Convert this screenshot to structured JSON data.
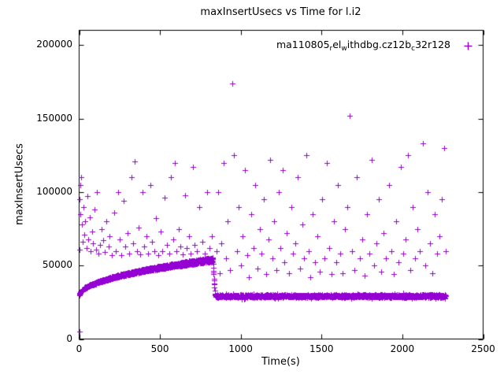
{
  "title": "maxInsertUsecs vs Time for l.i2",
  "legend": {
    "plain": "ma110805_rel_withdbg.cz12b_c32r128",
    "parts": [
      {
        "text": "ma110805"
      },
      {
        "text": "r",
        "sub": true
      },
      {
        "text": "el"
      },
      {
        "text": "w",
        "sub": true
      },
      {
        "text": "ithdbg.cz12b"
      },
      {
        "text": "c",
        "sub": true
      },
      {
        "text": "32r128"
      }
    ]
  },
  "axes": {
    "x": {
      "label": "Time(s)",
      "min": 0,
      "max": 2500,
      "ticks": [
        {
          "v": 0,
          "label": "0"
        },
        {
          "v": 500,
          "label": "500"
        },
        {
          "v": 1000,
          "label": "1000"
        },
        {
          "v": 1500,
          "label": "1500"
        },
        {
          "v": 2000,
          "label": "2000"
        },
        {
          "v": 2500,
          "label": "2500"
        }
      ]
    },
    "y": {
      "label": "maxInsertUsecs",
      "min": 0,
      "max": 210000,
      "ticks": [
        {
          "v": 0,
          "label": "0"
        },
        {
          "v": 50000,
          "label": "50000"
        },
        {
          "v": 100000,
          "label": "100000"
        },
        {
          "v": 150000,
          "label": "150000"
        },
        {
          "v": 200000,
          "label": "200000"
        }
      ]
    }
  },
  "style": {
    "marker_color": "#9400d3",
    "axis_color": "#000000",
    "background": "#ffffff",
    "marker": "plus"
  },
  "chart_data": {
    "type": "scatter",
    "title": "maxInsertUsecs vs Time for l.i2",
    "xlabel": "Time(s)",
    "ylabel": "maxInsertUsecs",
    "xlim": [
      0,
      2500
    ],
    "ylim": [
      0,
      210000
    ],
    "grid": false,
    "legend_position": "top-right-inside",
    "seed": 42,
    "series": [
      {
        "name": "ma110805_rel_withdbg.cz12b_c32r128",
        "color": "#9400d3",
        "marker": "plus",
        "band": {
          "rise": {
            "x_start": 0,
            "x_end": 826,
            "y_start": 29500,
            "y_end": 54000,
            "exponent": 0.5,
            "step": 1.15,
            "noise_start": 600,
            "noise_end": 1500
          },
          "drop": {
            "x_start": 827,
            "x_end": 841,
            "y_from": 54000,
            "y_to": 29500,
            "points": 15
          },
          "plateau": {
            "x_start": 842,
            "x_end": 2268,
            "y": 29200,
            "step": 1.05,
            "noise": 900,
            "spike_chance": 0.06,
            "spike_extra": 1500
          }
        },
        "low_points": [
          [
            2,
            5000
          ]
        ],
        "outliers": [
          [
            2,
            61000
          ],
          [
            4,
            95000
          ],
          [
            6,
            85000
          ],
          [
            9,
            105000
          ],
          [
            12,
            110000
          ],
          [
            15,
            78000
          ],
          [
            20,
            66000
          ],
          [
            26,
            90000
          ],
          [
            32,
            71000
          ],
          [
            38,
            80000
          ],
          [
            45,
            62000
          ],
          [
            52,
            97000
          ],
          [
            58,
            68000
          ],
          [
            64,
            83000
          ],
          [
            70,
            60000
          ],
          [
            78,
            73000
          ],
          [
            86,
            65000
          ],
          [
            95,
            88000
          ],
          [
            105,
            61000
          ],
          [
            112,
            100000
          ],
          [
            120,
            58000
          ],
          [
            130,
            64000
          ],
          [
            141,
            75000
          ],
          [
            150,
            67000
          ],
          [
            160,
            59000
          ],
          [
            170,
            80000
          ],
          [
            181,
            63000
          ],
          [
            190,
            70000
          ],
          [
            200,
            57000
          ],
          [
            215,
            86000
          ],
          [
            226,
            60000
          ],
          [
            240,
            100000
          ],
          [
            251,
            68000
          ],
          [
            262,
            57000
          ],
          [
            275,
            94000
          ],
          [
            286,
            63000
          ],
          [
            300,
            72000
          ],
          [
            311,
            58000
          ],
          [
            322,
            110000
          ],
          [
            332,
            65000
          ],
          [
            345,
            121000
          ],
          [
            356,
            60000
          ],
          [
            366,
            76000
          ],
          [
            380,
            57500
          ],
          [
            391,
            100000
          ],
          [
            402,
            63000
          ],
          [
            415,
            70000
          ],
          [
            426,
            58000
          ],
          [
            440,
            105000
          ],
          [
            451,
            66000
          ],
          [
            465,
            60000
          ],
          [
            476,
            82000
          ],
          [
            490,
            57000
          ],
          [
            505,
            73000
          ],
          [
            516,
            60000
          ],
          [
            530,
            96000
          ],
          [
            541,
            64000
          ],
          [
            556,
            58000
          ],
          [
            566,
            110000
          ],
          [
            580,
            68000
          ],
          [
            591,
            120000
          ],
          [
            601,
            60000
          ],
          [
            615,
            75000
          ],
          [
            626,
            63000
          ],
          [
            641,
            57500
          ],
          [
            655,
            98000
          ],
          [
            666,
            62000
          ],
          [
            680,
            70000
          ],
          [
            691,
            58000
          ],
          [
            705,
            117000
          ],
          [
            716,
            64000
          ],
          [
            730,
            60000
          ],
          [
            745,
            90000
          ],
          [
            761,
            66000
          ],
          [
            776,
            58000
          ],
          [
            790,
            100000
          ],
          [
            806,
            62000
          ],
          [
            820,
            70000
          ],
          [
            850,
            60000
          ],
          [
            861,
            100000
          ],
          [
            871,
            45000
          ],
          [
            882,
            65000
          ],
          [
            895,
            120000
          ],
          [
            910,
            55000
          ],
          [
            921,
            80000
          ],
          [
            935,
            47000
          ],
          [
            950,
            174000
          ],
          [
            960,
            125000
          ],
          [
            975,
            60000
          ],
          [
            986,
            90000
          ],
          [
            1000,
            50000
          ],
          [
            1011,
            70000
          ],
          [
            1025,
            115000
          ],
          [
            1040,
            57000
          ],
          [
            1051,
            42000
          ],
          [
            1065,
            85000
          ],
          [
            1080,
            62000
          ],
          [
            1091,
            105000
          ],
          [
            1105,
            48000
          ],
          [
            1116,
            75000
          ],
          [
            1130,
            58000
          ],
          [
            1141,
            95000
          ],
          [
            1155,
            44000
          ],
          [
            1170,
            68000
          ],
          [
            1181,
            122000
          ],
          [
            1195,
            55000
          ],
          [
            1206,
            80000
          ],
          [
            1220,
            47000
          ],
          [
            1235,
            100000
          ],
          [
            1246,
            62000
          ],
          [
            1260,
            115000
          ],
          [
            1271,
            52000
          ],
          [
            1285,
            72000
          ],
          [
            1300,
            45000
          ],
          [
            1311,
            90000
          ],
          [
            1325,
            58000
          ],
          [
            1340,
            65000
          ],
          [
            1351,
            110000
          ],
          [
            1365,
            48000
          ],
          [
            1380,
            78000
          ],
          [
            1391,
            55000
          ],
          [
            1405,
            125000
          ],
          [
            1420,
            60000
          ],
          [
            1431,
            42000
          ],
          [
            1445,
            85000
          ],
          [
            1460,
            52000
          ],
          [
            1476,
            70000
          ],
          [
            1490,
            46000
          ],
          [
            1505,
            95000
          ],
          [
            1520,
            55000
          ],
          [
            1531,
            120000
          ],
          [
            1545,
            62000
          ],
          [
            1560,
            44000
          ],
          [
            1576,
            80000
          ],
          [
            1590,
            52000
          ],
          [
            1601,
            105000
          ],
          [
            1615,
            58000
          ],
          [
            1630,
            45000
          ],
          [
            1645,
            75000
          ],
          [
            1661,
            90000
          ],
          [
            1676,
            152000
          ],
          [
            1690,
            60000
          ],
          [
            1705,
            47000
          ],
          [
            1720,
            110000
          ],
          [
            1736,
            55000
          ],
          [
            1750,
            68000
          ],
          [
            1765,
            43000
          ],
          [
            1780,
            85000
          ],
          [
            1796,
            58000
          ],
          [
            1810,
            122000
          ],
          [
            1825,
            50000
          ],
          [
            1840,
            65000
          ],
          [
            1856,
            95000
          ],
          [
            1870,
            46000
          ],
          [
            1885,
            72000
          ],
          [
            1900,
            55000
          ],
          [
            1916,
            105000
          ],
          [
            1930,
            60000
          ],
          [
            1945,
            44000
          ],
          [
            1960,
            80000
          ],
          [
            1976,
            52000
          ],
          [
            1990,
            117000
          ],
          [
            2005,
            58000
          ],
          [
            2020,
            68000
          ],
          [
            2035,
            125000
          ],
          [
            2050,
            47000
          ],
          [
            2066,
            90000
          ],
          [
            2080,
            55000
          ],
          [
            2095,
            75000
          ],
          [
            2110,
            60000
          ],
          [
            2125,
            133000
          ],
          [
            2140,
            50000
          ],
          [
            2156,
            100000
          ],
          [
            2170,
            65000
          ],
          [
            2185,
            45000
          ],
          [
            2200,
            85000
          ],
          [
            2216,
            58000
          ],
          [
            2230,
            70000
          ],
          [
            2245,
            95000
          ],
          [
            2260,
            130000
          ],
          [
            2270,
            60000
          ]
        ]
      }
    ]
  }
}
